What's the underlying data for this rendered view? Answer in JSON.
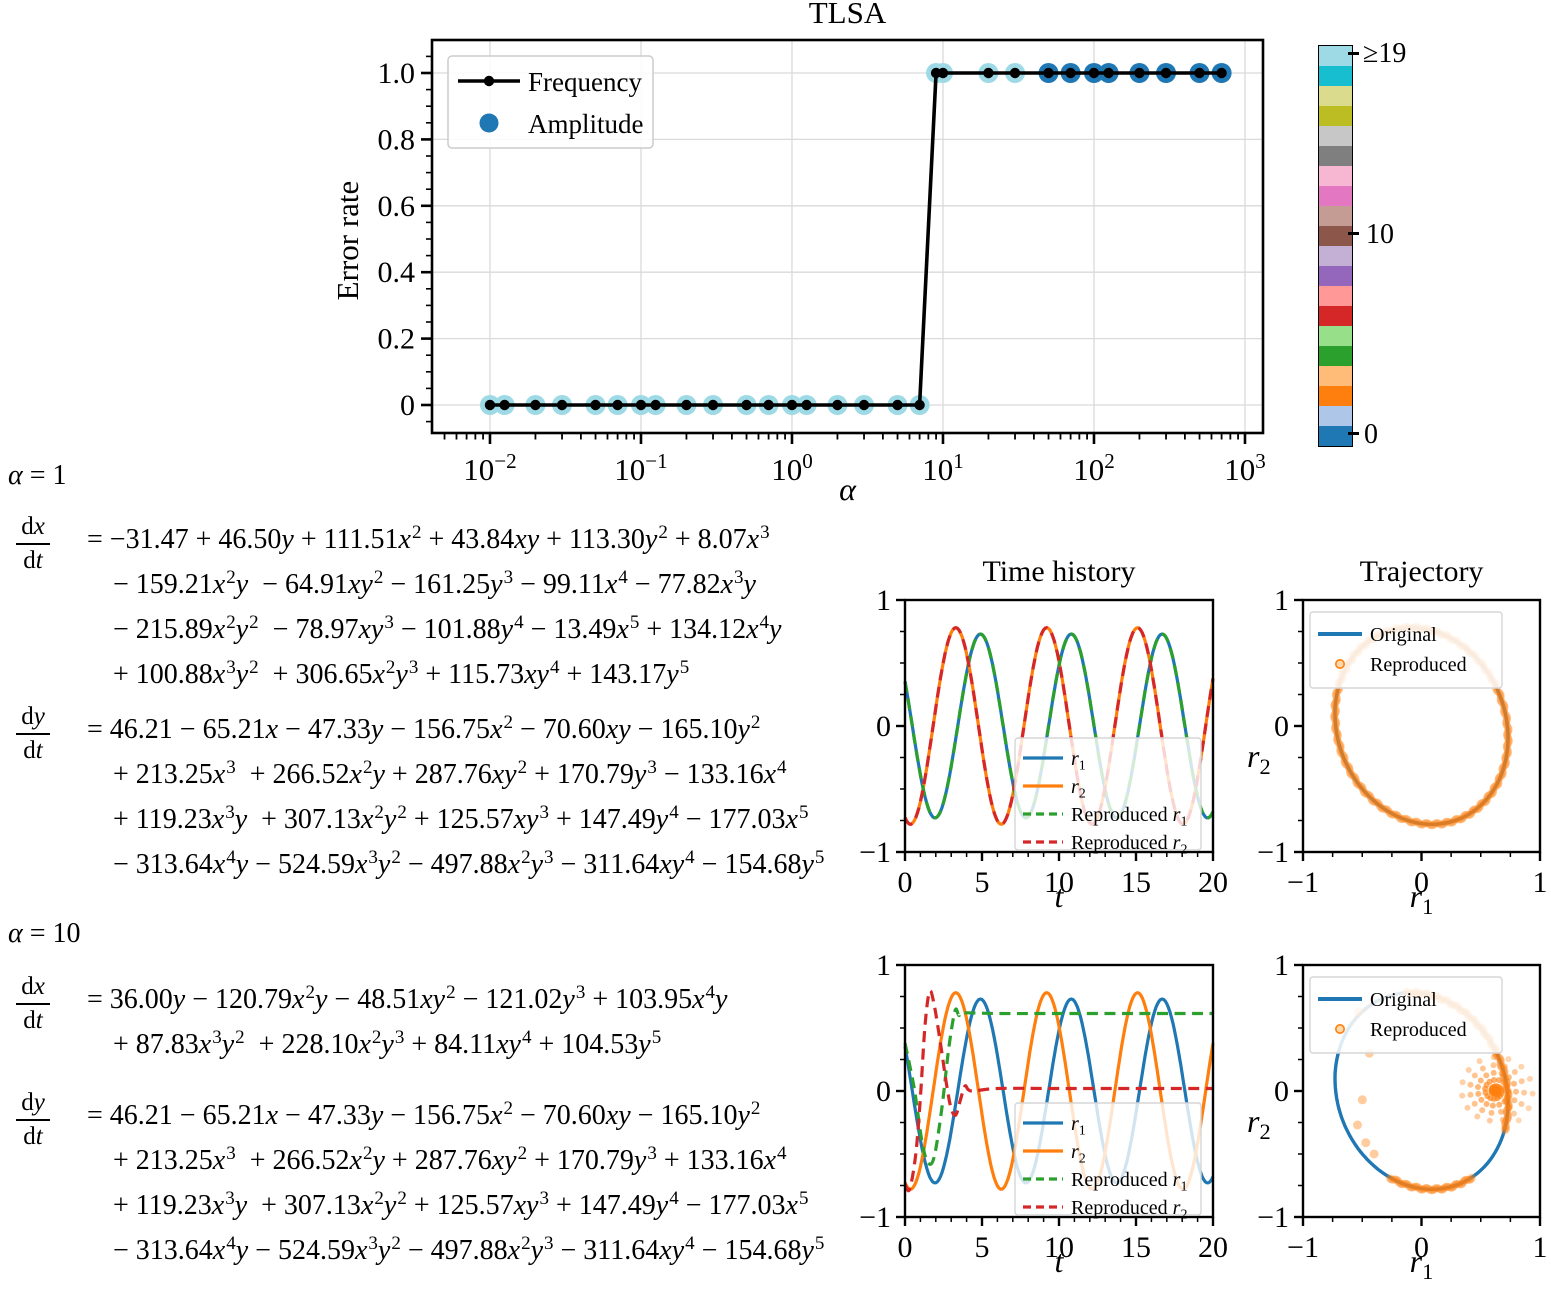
{
  "colorbar": {
    "colors_bottom_to_top": [
      "#1f77b4",
      "#aec7e8",
      "#ff7f0e",
      "#ffbb78",
      "#2ca02c",
      "#98df8a",
      "#d62728",
      "#ff9896",
      "#9467bd",
      "#c5b0d5",
      "#8c564b",
      "#c49c94",
      "#e377c2",
      "#f7b6d2",
      "#7f7f7f",
      "#c7c7c7",
      "#bcbd22",
      "#dbdb8d",
      "#17becf",
      "#9edae5"
    ],
    "tick_labels": [
      "≥19",
      "10",
      "0"
    ],
    "tick_values": [
      19,
      10,
      0
    ]
  },
  "headings": {
    "alpha_1": "α = 1",
    "alpha_10": "α = 10"
  },
  "equations": {
    "alpha_1_dx": {
      "lhs_num": "dx",
      "lhs_den": "dt",
      "lines": [
        "= −31.47 + 46.50y + 111.51x^2 + 43.84xy + 113.30y^2 + 8.07x^3",
        "− 159.21x^2y − 64.91xy^2 − 161.25y^3 − 99.11x^4 − 77.82x^3y",
        "− 215.89x^2y^2 − 78.97xy^3 − 101.88y^4 − 13.49x^5 + 134.12x^4y",
        "+ 100.88x^3y^2 + 306.65x^2y^3 + 115.73xy^4 + 143.17y^5"
      ]
    },
    "alpha_1_dy": {
      "lhs_num": "dy",
      "lhs_den": "dt",
      "lines": [
        "= 46.21 − 65.21x − 47.33y − 156.75x^2 − 70.60xy − 165.10y^2",
        "+ 213.25x^3 + 266.52x^2y + 287.76xy^2 + 170.79y^3 − 133.16x^4",
        "+ 119.23x^3y + 307.13x^2y^2 + 125.57xy^3 + 147.49y^4 − 177.03x^5",
        "− 313.64x^4y − 524.59x^3y^2 − 497.88x^2y^3 − 311.64xy^4 − 154.68y^5"
      ]
    },
    "alpha_10_dx": {
      "lhs_num": "dx",
      "lhs_den": "dt",
      "lines": [
        "= 36.00y − 120.79x^2y − 48.51xy^2 − 121.02y^3 + 103.95x^4y",
        "+ 87.83x^3y^2 + 228.10x^2y^3 + 84.11xy^4 + 104.53y^5"
      ]
    },
    "alpha_10_dy": {
      "lhs_num": "dy",
      "lhs_den": "dt",
      "lines": [
        "= 46.21 − 65.21x − 47.33y − 156.75x^2 − 70.60xy − 165.10y^2",
        "+ 213.25x^3 + 266.52x^2y + 287.76xy^2 + 170.79y^3 + 133.16x^4",
        "+ 119.23x^3y + 307.13x^2y^2 + 125.57xy^3 + 147.49y^4 − 177.03x^5",
        "− 313.64x^4y − 524.59x^3y^2 − 497.88x^2y^3 − 311.64xy^4 − 154.68y^5"
      ]
    }
  },
  "chart_data": [
    {
      "id": "error_rate",
      "type": "line",
      "title": "TLSA",
      "xlabel": "α",
      "ylabel": "Error rate",
      "x_scale": "log",
      "xlim": [
        0.0041,
        1316
      ],
      "ylim": [
        -0.084,
        1.099
      ],
      "x_tick_exponents": [
        -2,
        -1,
        0,
        1,
        2,
        3
      ],
      "y_ticks": [
        0,
        0.2,
        0.4,
        0.6,
        0.8,
        1.0
      ],
      "grid": true,
      "legend": [
        {
          "label": "Frequency",
          "color": "#000000",
          "marker": "line-dot"
        },
        {
          "label": "Amplitude",
          "color": "#1f77b4",
          "marker": "dot"
        }
      ],
      "alpha": [
        0.01,
        0.0125,
        0.02,
        0.03,
        0.05,
        0.07,
        0.1,
        0.125,
        0.2,
        0.3,
        0.5,
        0.7,
        1,
        1.25,
        2,
        3,
        5,
        7,
        9,
        10,
        20,
        30,
        50,
        70,
        100,
        125,
        200,
        300,
        500,
        700
      ],
      "frequency_error_rate": [
        0,
        0,
        0,
        0,
        0,
        0,
        0,
        0,
        0,
        0,
        0,
        0,
        0,
        0,
        0,
        0,
        0,
        0,
        1,
        1,
        1,
        1,
        1,
        1,
        1,
        1,
        1,
        1,
        1,
        1
      ],
      "amplitude_count": [
        19,
        19,
        19,
        19,
        19,
        19,
        19,
        19,
        19,
        19,
        19,
        19,
        19,
        19,
        19,
        19,
        19,
        19,
        19,
        19,
        19,
        19,
        0,
        0,
        0,
        0,
        0,
        0,
        0,
        0
      ]
    },
    {
      "id": "time_history_alpha1",
      "type": "line",
      "title": "Time history",
      "xlabel": "t",
      "side_label": "r_2",
      "xlim": [
        0,
        20
      ],
      "ylim": [
        -1,
        1
      ],
      "x_ticks": [
        0,
        5,
        10,
        15,
        20
      ],
      "y_ticks": [
        1,
        0,
        -1
      ],
      "series": [
        {
          "label": "r_1",
          "color": "#1f77b4",
          "style": "solid",
          "model": "cosine",
          "amplitude": 0.73,
          "period": 5.9,
          "peak_time": 4.9
        },
        {
          "label": "r_2",
          "color": "#ff7f0e",
          "style": "solid",
          "model": "cosine",
          "amplitude": 0.78,
          "period": 5.9,
          "peak_time": 3.3
        },
        {
          "label": "Reproduced r_1",
          "color": "#2ca02c",
          "style": "dashed",
          "model": "cosine",
          "amplitude": 0.73,
          "period": 5.9,
          "peak_time": 4.9
        },
        {
          "label": "Reproduced r_2",
          "color": "#d62728",
          "style": "dashed",
          "model": "cosine",
          "amplitude": 0.78,
          "period": 5.9,
          "peak_time": 3.3
        }
      ]
    },
    {
      "id": "trajectory_alpha1",
      "type": "scatter",
      "title": "Trajectory",
      "xlabel": "r_1",
      "xlim": [
        -1,
        1
      ],
      "ylim": [
        -1,
        1
      ],
      "x_ticks": [
        -1,
        0,
        1
      ],
      "y_ticks": [
        1,
        0,
        -1
      ],
      "legend": [
        {
          "label": "Original",
          "color": "#1f77b4",
          "marker": "line"
        },
        {
          "label": "Reproduced",
          "color": "#ff7f0e",
          "marker": "circle"
        }
      ],
      "orbit": {
        "rx": 0.73,
        "ry": 0.78,
        "phase_deg": 97
      },
      "reproduced": {
        "coverage": "full-orbit"
      }
    },
    {
      "id": "time_history_alpha10",
      "type": "line",
      "title": "",
      "xlabel": "t",
      "side_label": "r_2",
      "xlim": [
        0,
        20
      ],
      "ylim": [
        -1,
        1
      ],
      "x_ticks": [
        0,
        5,
        10,
        15,
        20
      ],
      "y_ticks": [
        1,
        0,
        -1
      ],
      "series": [
        {
          "label": "r_1",
          "color": "#1f77b4",
          "style": "solid",
          "model": "cosine",
          "amplitude": 0.73,
          "period": 5.9,
          "peak_time": 4.9
        },
        {
          "label": "r_2",
          "color": "#ff7f0e",
          "style": "solid",
          "model": "cosine",
          "amplitude": 0.78,
          "period": 5.9,
          "peak_time": 3.3
        },
        {
          "label": "Reproduced r_1",
          "color": "#2ca02c",
          "style": "dashed",
          "model": "points",
          "points": [
            [
              0,
              0.38
            ],
            [
              0.6,
              0.02
            ],
            [
              1.1,
              -0.4
            ],
            [
              1.5,
              -0.57
            ],
            [
              1.9,
              -0.52
            ],
            [
              2.4,
              -0.13
            ],
            [
              2.8,
              0.3
            ],
            [
              3.1,
              0.55
            ],
            [
              3.3,
              0.65
            ],
            [
              3.5,
              0.6
            ],
            [
              3.8,
              0.62
            ],
            [
              6,
              0.615
            ],
            [
              10,
              0.615
            ],
            [
              15,
              0.615
            ],
            [
              20,
              0.615
            ]
          ]
        },
        {
          "label": "Reproduced r_2",
          "color": "#d62728",
          "style": "dashed",
          "model": "points",
          "points": [
            [
              0,
              -0.74
            ],
            [
              0.3,
              -0.78
            ],
            [
              0.7,
              -0.5
            ],
            [
              1.0,
              -0.05
            ],
            [
              1.3,
              0.52
            ],
            [
              1.6,
              0.79
            ],
            [
              1.9,
              0.68
            ],
            [
              2.3,
              0.38
            ],
            [
              2.7,
              0.05
            ],
            [
              3.0,
              -0.14
            ],
            [
              3.3,
              -0.19
            ],
            [
              3.6,
              -0.07
            ],
            [
              3.9,
              0.04
            ],
            [
              4.3,
              0.0
            ],
            [
              6,
              0.02
            ],
            [
              10,
              0.02
            ],
            [
              15,
              0.02
            ],
            [
              20,
              0.02
            ]
          ]
        }
      ]
    },
    {
      "id": "trajectory_alpha10",
      "type": "scatter",
      "title": "",
      "xlabel": "r_1",
      "xlim": [
        -1,
        1
      ],
      "ylim": [
        -1,
        1
      ],
      "x_ticks": [
        -1,
        0,
        1
      ],
      "y_ticks": [
        1,
        0,
        -1
      ],
      "legend": [
        {
          "label": "Original",
          "color": "#1f77b4",
          "marker": "line"
        },
        {
          "label": "Reproduced",
          "color": "#ff7f0e",
          "marker": "circle"
        }
      ],
      "orbit": {
        "rx": 0.73,
        "ry": 0.78,
        "phase_deg": 97
      },
      "reproduced": {
        "coverage": "partial-orbit",
        "arc_theta_ranges_rad": [
          [
            -1.75,
            0.3
          ],
          [
            0.95,
            1.95
          ]
        ],
        "faint_arc_theta_rad": [
          -2.5,
          -1.75
        ],
        "spiral_center": [
          0.62,
          0.0
        ],
        "stray_points": [
          [
            -0.53,
            0.63
          ],
          [
            -0.44,
            0.3
          ],
          [
            -0.5,
            -0.07
          ],
          [
            -0.54,
            -0.27
          ],
          [
            -0.47,
            -0.41
          ],
          [
            -0.4,
            -0.5
          ]
        ]
      }
    }
  ]
}
